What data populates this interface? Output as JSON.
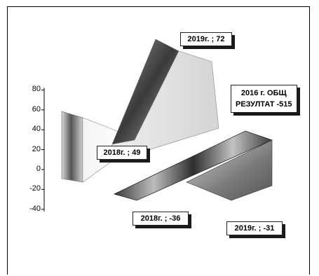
{
  "chart_data": {
    "type": "area",
    "title": "",
    "xlabel": "",
    "ylabel": "",
    "ylim": [
      -40,
      80
    ],
    "y_ticks": [
      "80",
      "60",
      "40",
      "20",
      "0",
      "-20",
      "-40"
    ],
    "grid": false,
    "series": [
      {
        "name": "",
        "points": [
          {
            "x": "2018г.",
            "y": 49
          },
          {
            "x": "2019г.",
            "y": 72
          }
        ]
      },
      {
        "name": "",
        "points": [
          {
            "x": "2018г.",
            "y": -36
          },
          {
            "x": "2019г.",
            "y": -31
          }
        ]
      }
    ],
    "data_labels": {
      "upper_2018": "2018г.  ; 49",
      "upper_2019": "2019г.  ; 72",
      "lower_2018": "2018г.  ; -36",
      "lower_2019": "2019г.  ; -31",
      "total_line1": "2016 г. ОБЩ",
      "total_line2": "РЕЗУЛТАТ -515"
    }
  }
}
